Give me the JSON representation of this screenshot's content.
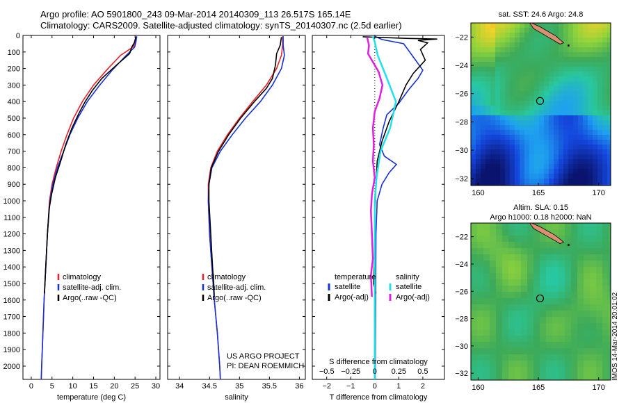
{
  "header": {
    "line1": "Argo profile: AO 5901800_243 09-Mar-2014 20140309_113 26.517S 165.14E",
    "line2": "Climatology: CARS2009. Satellite-adjusted climatology: synTS_20140307.nc (2.5d earlier)"
  },
  "stamp": "IMOS 14-Mar-2014 20:01:02",
  "colors": {
    "climatology": "#e8202a",
    "satellite": "#1530d8",
    "argo": "#000000",
    "sal_satellite": "#22e0e8",
    "sal_argo": "#e020e0"
  },
  "chart_data": [
    {
      "id": "temperature",
      "type": "line",
      "xlabel": "temperature (deg C)",
      "ylabel": "",
      "xlim": [
        -2,
        31
      ],
      "ylim": [
        2080,
        0
      ],
      "xticks": [
        0,
        5,
        10,
        15,
        20,
        25,
        30
      ],
      "yticks": [
        0,
        100,
        200,
        300,
        400,
        500,
        600,
        700,
        800,
        900,
        1000,
        1100,
        1200,
        1300,
        1400,
        1500,
        1600,
        1700,
        1800,
        1900,
        2000
      ],
      "legend": [
        "climatology",
        "satellite-adj. clim.",
        "Argo(..raw -QC)"
      ],
      "series": [
        {
          "name": "climatology",
          "color": "#e8202a",
          "points": [
            [
              25.3,
              5
            ],
            [
              25.1,
              40
            ],
            [
              24.5,
              70
            ],
            [
              21.5,
              120
            ],
            [
              18.5,
              200
            ],
            [
              15,
              300
            ],
            [
              12.3,
              400
            ],
            [
              10.2,
              500
            ],
            [
              8.6,
              600
            ],
            [
              7.2,
              700
            ],
            [
              6,
              800
            ],
            [
              5,
              900
            ],
            [
              4.4,
              1000
            ],
            [
              3.9,
              1200
            ],
            [
              3.5,
              1400
            ],
            [
              3.1,
              1600
            ],
            [
              2.8,
              1800
            ],
            [
              2.5,
              2000
            ],
            [
              2.4,
              2080
            ]
          ]
        },
        {
          "name": "satellite-adj. clim.",
          "color": "#1530d8",
          "points": [
            [
              25.4,
              5
            ],
            [
              25.2,
              40
            ],
            [
              24.9,
              70
            ],
            [
              22.5,
              130
            ],
            [
              19.5,
              210
            ],
            [
              16.5,
              300
            ],
            [
              13.5,
              400
            ],
            [
              11.2,
              500
            ],
            [
              9.3,
              600
            ],
            [
              7.8,
              700
            ],
            [
              6.3,
              800
            ],
            [
              5.2,
              900
            ],
            [
              4.5,
              1000
            ],
            [
              3.9,
              1200
            ],
            [
              3.5,
              1400
            ],
            [
              3.1,
              1600
            ],
            [
              2.8,
              1800
            ],
            [
              2.5,
              2000
            ],
            [
              2.4,
              2080
            ]
          ]
        },
        {
          "name": "Argo(..raw -QC)",
          "color": "#000000",
          "points": [
            [
              25.2,
              10
            ],
            [
              24.8,
              45
            ],
            [
              24.2,
              70
            ],
            [
              23.7,
              110
            ],
            [
              20.5,
              180
            ],
            [
              17,
              260
            ],
            [
              14.8,
              330
            ],
            [
              13,
              400
            ],
            [
              11.5,
              470
            ],
            [
              9.8,
              560
            ],
            [
              8.3,
              660
            ],
            [
              7.1,
              760
            ],
            [
              5.8,
              860
            ],
            [
              4.9,
              960
            ],
            [
              4.3,
              1050
            ],
            [
              3.9,
              1200
            ],
            [
              3.5,
              1400
            ],
            [
              3.3,
              1500
            ],
            [
              3.2,
              1560
            ]
          ]
        }
      ]
    },
    {
      "id": "salinity",
      "type": "line",
      "xlabel": "salinity",
      "ylabel": "",
      "xlim": [
        33.8,
        36.1
      ],
      "ylim": [
        2080,
        0
      ],
      "xticks": [
        34,
        34.5,
        35,
        35.5,
        36
      ],
      "legend": [
        "climatology",
        "satellite-adj. clim.",
        "Argo(..raw -QC)"
      ],
      "annotation": [
        "US ARGO PROJECT",
        "PI: DEAN ROEMMICH"
      ],
      "series": [
        {
          "name": "climatology",
          "color": "#e8202a",
          "points": [
            [
              35.72,
              5
            ],
            [
              35.72,
              60
            ],
            [
              35.7,
              120
            ],
            [
              35.62,
              200
            ],
            [
              35.45,
              300
            ],
            [
              35.22,
              400
            ],
            [
              35.0,
              500
            ],
            [
              34.8,
              600
            ],
            [
              34.63,
              700
            ],
            [
              34.52,
              800
            ],
            [
              34.48,
              900
            ],
            [
              34.48,
              1000
            ],
            [
              34.5,
              1200
            ],
            [
              34.54,
              1400
            ],
            [
              34.58,
              1600
            ],
            [
              34.63,
              1800
            ],
            [
              34.67,
              2000
            ],
            [
              34.68,
              2080
            ]
          ]
        },
        {
          "name": "satellite-adj. clim.",
          "color": "#1530d8",
          "points": [
            [
              35.73,
              5
            ],
            [
              35.73,
              60
            ],
            [
              35.75,
              120
            ],
            [
              35.7,
              200
            ],
            [
              35.55,
              300
            ],
            [
              35.35,
              400
            ],
            [
              35.1,
              500
            ],
            [
              34.88,
              600
            ],
            [
              34.68,
              700
            ],
            [
              34.54,
              800
            ],
            [
              34.49,
              900
            ],
            [
              34.48,
              1000
            ],
            [
              34.5,
              1200
            ],
            [
              34.54,
              1400
            ],
            [
              34.58,
              1600
            ],
            [
              34.63,
              1800
            ],
            [
              34.67,
              2000
            ],
            [
              34.68,
              2080
            ]
          ]
        },
        {
          "name": "Argo(..raw -QC)",
          "color": "#000000",
          "points": [
            [
              35.7,
              10
            ],
            [
              35.68,
              60
            ],
            [
              35.62,
              110
            ],
            [
              35.6,
              180
            ],
            [
              35.55,
              260
            ],
            [
              35.45,
              320
            ],
            [
              35.25,
              400
            ],
            [
              35.02,
              500
            ],
            [
              34.82,
              600
            ],
            [
              34.65,
              700
            ],
            [
              34.53,
              800
            ],
            [
              34.49,
              900
            ],
            [
              34.49,
              1000
            ],
            [
              34.52,
              1200
            ],
            [
              34.55,
              1400
            ],
            [
              34.57,
              1500
            ],
            [
              34.58,
              1580
            ]
          ]
        }
      ]
    },
    {
      "id": "difference",
      "type": "line",
      "xlabel": "T difference from climatology",
      "ylabel": "",
      "x2label": "S difference from climatology",
      "xlim": [
        -2.6,
        2.9
      ],
      "ylim": [
        2080,
        0
      ],
      "xticks": [
        -2,
        -1,
        0,
        1,
        2
      ],
      "xtick_labels": [
        "−2",
        "−1",
        "0",
        "1",
        "2"
      ],
      "x2ticks": [
        -0.5,
        -0.25,
        0,
        0.25,
        0.5
      ],
      "x2tick_labels": [
        "−0.5",
        "−0.25",
        "0",
        "0.25",
        "0.5"
      ],
      "legend_groups": [
        {
          "title": "temperature",
          "entries": [
            "satellite",
            "Argo(-adj)"
          ]
        },
        {
          "title": "salinity",
          "entries": [
            "satellite",
            "Argo(-adj)"
          ]
        }
      ],
      "series": [
        {
          "name": "temperature satellite",
          "color": "#1530d8",
          "points": [
            [
              0,
              5
            ],
            [
              0.3,
              25
            ],
            [
              1.2,
              50
            ],
            [
              1.6,
              130
            ],
            [
              2.0,
              210
            ],
            [
              1.8,
              260
            ],
            [
              1.4,
              330
            ],
            [
              1.0,
              410
            ],
            [
              0.5,
              480
            ],
            [
              0.35,
              560
            ],
            [
              0.2,
              660
            ],
            [
              0.4,
              730
            ],
            [
              0.9,
              780
            ],
            [
              0.6,
              830
            ],
            [
              0.3,
              900
            ],
            [
              0.1,
              1000
            ],
            [
              0.05,
              1200
            ],
            [
              0.02,
              2080
            ]
          ]
        },
        {
          "name": "temperature Argo(-adj)",
          "color": "#000000",
          "points": [
            [
              -0.5,
              8
            ],
            [
              0.3,
              12
            ],
            [
              1.4,
              18
            ],
            [
              2.6,
              22
            ],
            [
              1.8,
              30
            ],
            [
              2.2,
              45
            ],
            [
              1.9,
              85
            ],
            [
              2.1,
              150
            ],
            [
              1.6,
              230
            ],
            [
              1.3,
              300
            ],
            [
              1.0,
              400
            ],
            [
              0.6,
              520
            ],
            [
              0.3,
              640
            ],
            [
              0.1,
              760
            ],
            [
              0.05,
              900
            ],
            [
              0.0,
              1100
            ],
            [
              0.0,
              1300
            ],
            [
              -0.05,
              1500
            ],
            [
              0.05,
              1560
            ]
          ]
        },
        {
          "name": "salinity satellite",
          "color": "#22e0e8",
          "points": [
            [
              -0.02,
              5
            ],
            [
              0.0,
              40
            ],
            [
              0.03,
              120
            ],
            [
              0.12,
              250
            ],
            [
              0.22,
              400
            ],
            [
              0.16,
              560
            ],
            [
              0.06,
              700
            ],
            [
              0.02,
              850
            ],
            [
              0.0,
              1000
            ],
            [
              0.0,
              1500
            ],
            [
              0.0,
              2080
            ]
          ]
        },
        {
          "name": "salinity Argo(-adj)",
          "color": "#e020e0",
          "points": [
            [
              -0.08,
              10
            ],
            [
              -0.06,
              60
            ],
            [
              -0.07,
              110
            ],
            [
              -0.02,
              160
            ],
            [
              0.04,
              220
            ],
            [
              0.08,
              300
            ],
            [
              0.05,
              380
            ],
            [
              0.0,
              460
            ],
            [
              -0.02,
              560
            ],
            [
              -0.01,
              660
            ],
            [
              -0.02,
              760
            ],
            [
              0.0,
              860
            ],
            [
              -0.03,
              960
            ],
            [
              -0.04,
              1060
            ],
            [
              -0.03,
              1200
            ],
            [
              -0.02,
              1350
            ],
            [
              -0.04,
              1450
            ],
            [
              -0.03,
              1580
            ]
          ]
        }
      ]
    },
    {
      "id": "sst-map",
      "type": "heatmap",
      "title": "sat. SST: 24.6 Argo: 24.8",
      "xlim": [
        159.4,
        171
      ],
      "ylim": [
        -32.5,
        -21
      ],
      "xticks": [
        160,
        165,
        170
      ],
      "yticks": [
        -22,
        -24,
        -26,
        -28,
        -30,
        -32
      ],
      "argo_position": [
        165.14,
        -26.517
      ]
    },
    {
      "id": "sla-map",
      "type": "heatmap",
      "title": "Altim. SLA: 0.15",
      "subtitle": "Argo h1000: 0.18 h2000: NaN",
      "xlim": [
        159.4,
        171
      ],
      "ylim": [
        -32.5,
        -21
      ],
      "xticks": [
        160,
        165,
        170
      ],
      "yticks": [
        -22,
        -24,
        -26,
        -28,
        -30,
        -32
      ],
      "argo_position": [
        165.14,
        -26.517
      ]
    }
  ]
}
